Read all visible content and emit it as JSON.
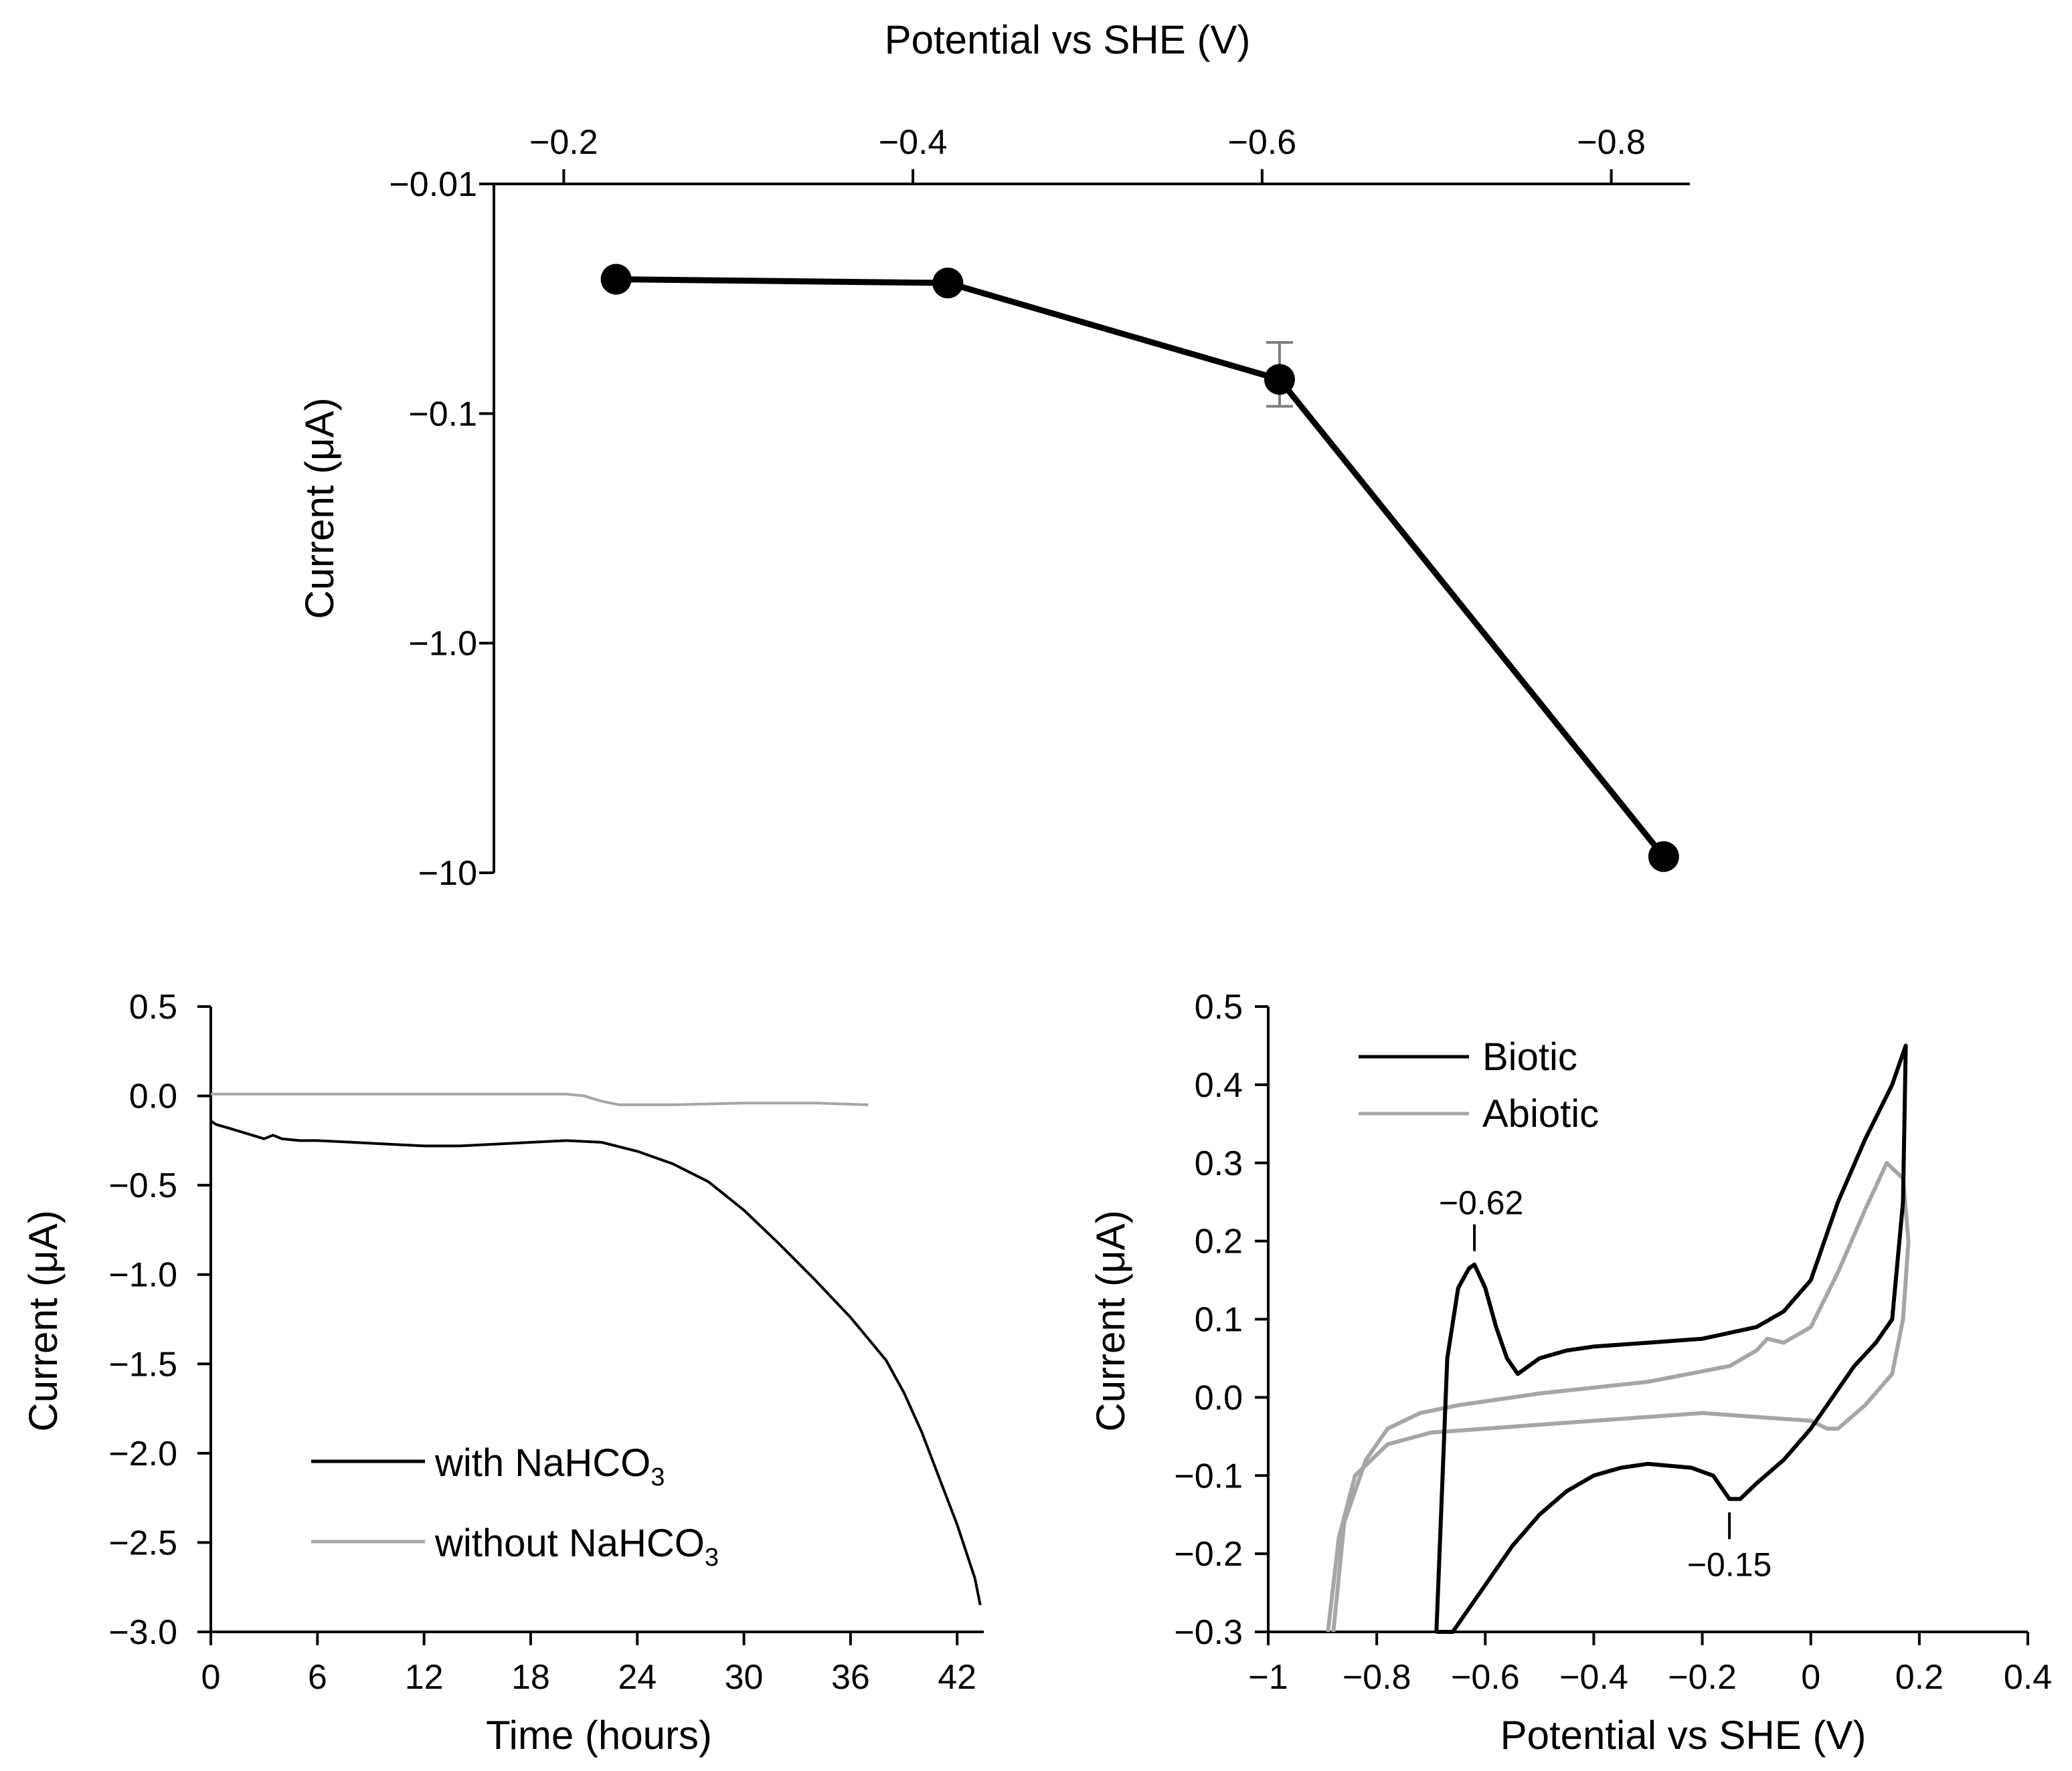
{
  "chart_data": [
    {
      "id": "top",
      "type": "line",
      "title": "",
      "xlabel": "Potential vs SHE (V)",
      "ylabel": "Current (μA)",
      "x_axis_position": "top",
      "x_reversed": true,
      "y_scale": "log-magnitude",
      "xlim": [
        -0.16,
        -0.845
      ],
      "ylim": [
        -0.01,
        -10
      ],
      "xticks": [
        -0.2,
        -0.4,
        -0.6,
        -0.8
      ],
      "xtick_labels": [
        "−0.2",
        "−0.4",
        "−0.6",
        "−0.8"
      ],
      "yticks": [
        -0.01,
        -0.1,
        -1.0,
        -10
      ],
      "ytick_labels": [
        "−0.01",
        "−0.1",
        "−1.0",
        "−10"
      ],
      "series": [
        {
          "name": "current",
          "color": "#000000",
          "x": [
            -0.23,
            -0.42,
            -0.61,
            -0.83
          ],
          "y": [
            -0.026,
            -0.027,
            -0.071,
            -8.5
          ],
          "yerr": [
            0,
            0,
            0.022,
            0
          ]
        }
      ]
    },
    {
      "id": "bottom-left",
      "type": "line",
      "title": "",
      "xlabel": "Time (hours)",
      "ylabel": "Current (μA)",
      "xlim": [
        0,
        43.5
      ],
      "ylim": [
        -3.0,
        0.5
      ],
      "xticks": [
        0,
        6,
        12,
        18,
        24,
        30,
        36,
        42
      ],
      "xtick_labels": [
        "0",
        "6",
        "12",
        "18",
        "24",
        "30",
        "36",
        "42"
      ],
      "yticks": [
        0.5,
        0.0,
        -0.5,
        -1.0,
        -1.5,
        -2.0,
        -2.5,
        -3.0
      ],
      "ytick_labels": [
        "0.5",
        "0.0",
        "−0.5",
        "−1.0",
        "−1.5",
        "−2.0",
        "−2.5",
        "−3.0"
      ],
      "legend_position": "bottom-left",
      "series": [
        {
          "name": "with NaHCO3",
          "legend_main": "with NaHCO",
          "legend_sub": "3",
          "color": "#000000",
          "x": [
            0,
            0.3,
            1,
            2,
            3,
            3.5,
            4,
            5,
            6,
            8,
            10,
            12,
            14,
            16,
            18,
            20,
            22,
            24,
            26,
            28,
            30,
            32,
            34,
            36,
            38,
            39,
            40,
            41,
            42,
            43,
            43.3
          ],
          "y": [
            -0.14,
            -0.16,
            -0.18,
            -0.21,
            -0.24,
            -0.22,
            -0.24,
            -0.25,
            -0.25,
            -0.26,
            -0.27,
            -0.28,
            -0.28,
            -0.27,
            -0.26,
            -0.25,
            -0.26,
            -0.31,
            -0.38,
            -0.48,
            -0.64,
            -0.83,
            -1.03,
            -1.24,
            -1.48,
            -1.66,
            -1.88,
            -2.14,
            -2.4,
            -2.7,
            -2.85
          ]
        },
        {
          "name": "without NaHCO3",
          "legend_main": "without NaHCO",
          "legend_sub": "3",
          "color": "#a6a6a6",
          "x": [
            0,
            2,
            6,
            10,
            14,
            18,
            20,
            21,
            22,
            23,
            24,
            26,
            30,
            34,
            37
          ],
          "y": [
            0.01,
            0.01,
            0.01,
            0.01,
            0.01,
            0.01,
            0.01,
            0.0,
            -0.03,
            -0.05,
            -0.05,
            -0.05,
            -0.04,
            -0.04,
            -0.05
          ]
        }
      ]
    },
    {
      "id": "bottom-right",
      "type": "line",
      "title": "",
      "xlabel": "Potential vs SHE (V)",
      "ylabel": "Current (μA)",
      "xlim": [
        -1,
        0.4
      ],
      "ylim": [
        -0.3,
        0.5
      ],
      "xticks": [
        -1,
        -0.8,
        -0.6,
        -0.4,
        -0.2,
        0,
        0.2,
        0.4
      ],
      "xtick_labels": [
        "−1",
        "−0.8",
        "−0.6",
        "−0.4",
        "−0.2",
        "0",
        "0.2",
        "0.4"
      ],
      "yticks": [
        0.5,
        0.4,
        0.3,
        0.2,
        0.1,
        0.0,
        -0.1,
        -0.2,
        -0.3
      ],
      "ytick_labels": [
        "0.5",
        "0.4",
        "0.3",
        "0.2",
        "0.1",
        "0.0",
        "−0.1",
        "−0.2",
        "−0.3"
      ],
      "legend_position": "top-left",
      "annotations": [
        {
          "text": "−0.62",
          "x": -0.62,
          "y": 0.17
        },
        {
          "text": "−0.15",
          "x": -0.15,
          "y": -0.13
        }
      ],
      "series": [
        {
          "name": "Biotic",
          "color": "#000000",
          "x": [
            -0.69,
            -0.67,
            -0.65,
            -0.63,
            -0.62,
            -0.6,
            -0.58,
            -0.56,
            -0.54,
            -0.52,
            -0.5,
            -0.45,
            -0.4,
            -0.3,
            -0.2,
            -0.1,
            -0.05,
            0,
            0.05,
            0.1,
            0.15,
            0.17,
            0.175,
            0.17,
            0.15,
            0.12,
            0.08,
            0.04,
            0,
            -0.05,
            -0.1,
            -0.13,
            -0.15,
            -0.18,
            -0.22,
            -0.3,
            -0.35,
            -0.4,
            -0.45,
            -0.5,
            -0.55,
            -0.6,
            -0.63,
            -0.65,
            -0.66,
            -0.67,
            -0.69
          ],
          "y": [
            -0.3,
            0.05,
            0.14,
            0.165,
            0.17,
            0.14,
            0.09,
            0.05,
            0.03,
            0.04,
            0.05,
            0.06,
            0.065,
            0.07,
            0.075,
            0.09,
            0.11,
            0.15,
            0.25,
            0.33,
            0.4,
            0.44,
            0.45,
            0.25,
            0.1,
            0.07,
            0.04,
            0.0,
            -0.04,
            -0.08,
            -0.11,
            -0.13,
            -0.13,
            -0.1,
            -0.09,
            -0.085,
            -0.09,
            -0.1,
            -0.12,
            -0.15,
            -0.19,
            -0.24,
            -0.27,
            -0.29,
            -0.3,
            -0.3,
            -0.3
          ]
        },
        {
          "name": "Abiotic",
          "color": "#a6a6a6",
          "x": [
            -0.88,
            -0.86,
            -0.82,
            -0.78,
            -0.72,
            -0.65,
            -0.5,
            -0.3,
            -0.15,
            -0.1,
            -0.08,
            -0.05,
            0,
            0.05,
            0.1,
            0.14,
            0.17,
            0.18,
            0.17,
            0.15,
            0.1,
            0.05,
            0.03,
            0,
            -0.2,
            -0.4,
            -0.6,
            -0.7,
            -0.78,
            -0.84,
            -0.87,
            -0.89
          ],
          "y": [
            -0.3,
            -0.16,
            -0.08,
            -0.04,
            -0.02,
            -0.01,
            0.005,
            0.02,
            0.04,
            0.06,
            0.075,
            0.07,
            0.09,
            0.16,
            0.24,
            0.3,
            0.28,
            0.2,
            0.1,
            0.03,
            -0.01,
            -0.04,
            -0.04,
            -0.03,
            -0.02,
            -0.03,
            -0.04,
            -0.045,
            -0.06,
            -0.1,
            -0.18,
            -0.3
          ]
        }
      ]
    }
  ]
}
